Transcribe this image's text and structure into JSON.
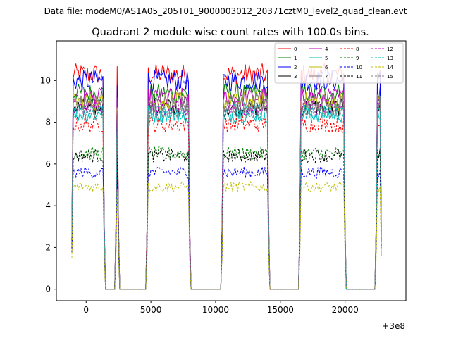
{
  "file_label": "Data file: modeM0/AS1A05_205T01_9000003012_20371cztM0_level2_quad_clean.evt",
  "chart_data": {
    "type": "line",
    "title": "Quadrant 2 module wise count rates with 100.0s bins.",
    "xlabel": "",
    "ylabel": "",
    "x_offset_label": "+3e8",
    "xlim": [
      -2300,
      24700
    ],
    "ylim": [
      -0.55,
      11.9
    ],
    "x_ticks": [
      0,
      5000,
      10000,
      15000,
      20000
    ],
    "x_tick_labels": [
      "0",
      "5000",
      "10000",
      "15000",
      "20000"
    ],
    "y_ticks": [
      0,
      2,
      4,
      6,
      8,
      10
    ],
    "y_tick_labels": [
      "0",
      "2",
      "4",
      "6",
      "8",
      "10"
    ],
    "on_segments": [
      [
        -1100,
        1400
      ],
      [
        2300,
        2500
      ],
      [
        4700,
        8000
      ],
      [
        10500,
        14100
      ],
      [
        16500,
        20000
      ],
      [
        22400,
        22800
      ]
    ],
    "legend_position": "upper right",
    "series": [
      {
        "name": "0",
        "color": "#ff0000",
        "dash": "solid",
        "level": 10.3
      },
      {
        "name": "1",
        "color": "#008000",
        "dash": "solid",
        "level": 9.4
      },
      {
        "name": "2",
        "color": "#0000ff",
        "dash": "solid",
        "level": 10.0
      },
      {
        "name": "3",
        "color": "#000000",
        "dash": "solid",
        "level": 8.7
      },
      {
        "name": "4",
        "color": "#bf00bf",
        "dash": "solid",
        "level": 9.2
      },
      {
        "name": "5",
        "color": "#00bfbf",
        "dash": "solid",
        "level": 8.4
      },
      {
        "name": "6",
        "color": "#bfbf00",
        "dash": "solid",
        "level": 9.0
      },
      {
        "name": "7",
        "color": "#808080",
        "dash": "solid",
        "level": 8.9
      },
      {
        "name": "8",
        "color": "#ff0000",
        "dash": "dashed",
        "level": 7.9
      },
      {
        "name": "9",
        "color": "#008000",
        "dash": "dashed",
        "level": 6.5
      },
      {
        "name": "10",
        "color": "#0000ff",
        "dash": "dashed",
        "level": 5.6
      },
      {
        "name": "11",
        "color": "#000000",
        "dash": "dashed",
        "level": 6.4
      },
      {
        "name": "12",
        "color": "#bf00bf",
        "dash": "dashed",
        "level": 8.7
      },
      {
        "name": "13",
        "color": "#00bfbf",
        "dash": "dashed",
        "level": 8.5
      },
      {
        "name": "14",
        "color": "#bfbf00",
        "dash": "dashed",
        "level": 4.9
      },
      {
        "name": "15",
        "color": "#808080",
        "dash": "dashed",
        "level": 8.6
      }
    ]
  }
}
